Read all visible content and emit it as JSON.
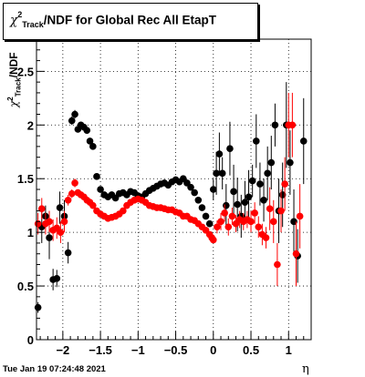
{
  "title": {
    "symbol": "χ",
    "superscript": "2",
    "subscript": "Track",
    "rest": "/NDF for Global Rec All EtapT"
  },
  "timestamp": "Tue Jan 19 07:24:48 2021",
  "xlabel": "η",
  "ylabel": {
    "symbol": "χ",
    "superscript": "2",
    "subscript": "Track",
    "rest": "/NDF"
  },
  "chart_data": {
    "type": "scatter",
    "title": "χ2Track/NDF for Global Rec All EtapT",
    "xlabel": "η",
    "ylabel": "χ2Track/NDF",
    "xlim": [
      -2.35,
      1.3
    ],
    "ylim": [
      0,
      2.8
    ],
    "xticks": [
      -2,
      -1.5,
      -1,
      -0.5,
      0,
      0.5,
      1
    ],
    "xtick_labels": [
      "−2",
      "−1.5",
      "−1",
      "−0.5",
      "0",
      "0.5",
      "1"
    ],
    "yticks": [
      0,
      0.5,
      1,
      1.5,
      2,
      2.5
    ],
    "ytick_labels": [
      "0",
      "0.5",
      "1",
      "1.5",
      "2",
      "2.5"
    ],
    "grid": true,
    "colors": {
      "black": "#000000",
      "red": "#ff0000"
    },
    "series": [
      {
        "color": "#000000",
        "points": [
          [
            -2.33,
            0.3,
            0.05
          ],
          [
            -2.28,
            1.05,
            0.15
          ],
          [
            -2.23,
            1.15,
            0.1
          ],
          [
            -2.18,
            0.95,
            0.2
          ],
          [
            -2.13,
            0.56,
            0.1
          ],
          [
            -2.08,
            0.57,
            0.08
          ],
          [
            -2.04,
            1.23,
            0.15
          ],
          [
            -1.98,
            1.15,
            0.15
          ],
          [
            -1.93,
            0.81,
            0.1
          ],
          [
            -1.88,
            2.04,
            0.04
          ],
          [
            -1.84,
            2.1,
            0.04
          ],
          [
            -1.8,
            1.96,
            0.03
          ],
          [
            -1.76,
            2.0,
            0.03
          ],
          [
            -1.72,
            1.98,
            0.03
          ],
          [
            -1.68,
            1.95,
            0.03
          ],
          [
            -1.64,
            1.85,
            0.03
          ],
          [
            -1.6,
            1.8,
            0.03
          ],
          [
            -1.55,
            1.52,
            0.03
          ],
          [
            -1.5,
            1.4,
            0.02
          ],
          [
            -1.45,
            1.35,
            0.02
          ],
          [
            -1.4,
            1.33,
            0.02
          ],
          [
            -1.35,
            1.35,
            0.02
          ],
          [
            -1.3,
            1.32,
            0.02
          ],
          [
            -1.25,
            1.36,
            0.02
          ],
          [
            -1.2,
            1.37,
            0.02
          ],
          [
            -1.15,
            1.35,
            0.02
          ],
          [
            -1.1,
            1.38,
            0.02
          ],
          [
            -1.05,
            1.37,
            0.02
          ],
          [
            -1.0,
            1.34,
            0.02
          ],
          [
            -0.95,
            1.33,
            0.02
          ],
          [
            -0.9,
            1.36,
            0.02
          ],
          [
            -0.85,
            1.39,
            0.02
          ],
          [
            -0.8,
            1.41,
            0.02
          ],
          [
            -0.75,
            1.43,
            0.02
          ],
          [
            -0.7,
            1.45,
            0.02
          ],
          [
            -0.65,
            1.46,
            0.02
          ],
          [
            -0.6,
            1.44,
            0.02
          ],
          [
            -0.55,
            1.47,
            0.02
          ],
          [
            -0.5,
            1.49,
            0.02
          ],
          [
            -0.45,
            1.47,
            0.02
          ],
          [
            -0.4,
            1.5,
            0.02
          ],
          [
            -0.35,
            1.46,
            0.02
          ],
          [
            -0.3,
            1.42,
            0.02
          ],
          [
            -0.25,
            1.37,
            0.02
          ],
          [
            -0.2,
            1.3,
            0.02
          ],
          [
            -0.15,
            1.23,
            0.02
          ],
          [
            -0.1,
            1.15,
            0.03
          ],
          [
            -0.05,
            1.08,
            0.03
          ],
          [
            0.0,
            1.4,
            0.1
          ],
          [
            0.04,
            1.55,
            0.2
          ],
          [
            0.08,
            1.73,
            0.2
          ],
          [
            0.12,
            1.55,
            0.15
          ],
          [
            0.17,
            1.25,
            0.2
          ],
          [
            0.22,
            1.78,
            0.25
          ],
          [
            0.27,
            1.38,
            0.25
          ],
          [
            0.32,
            1.26,
            0.25
          ],
          [
            0.37,
            1.15,
            0.2
          ],
          [
            0.42,
            1.28,
            0.2
          ],
          [
            0.47,
            1.33,
            0.25
          ],
          [
            0.52,
            1.48,
            0.15
          ],
          [
            0.57,
            1.85,
            0.25
          ],
          [
            0.62,
            1.45,
            0.2
          ],
          [
            0.67,
            1.3,
            0.2
          ],
          [
            0.72,
            1.55,
            0.25
          ],
          [
            0.77,
            1.65,
            0.25
          ],
          [
            0.82,
            2.0,
            0.2
          ],
          [
            0.87,
            1.2,
            0.3
          ],
          [
            0.92,
            1.35,
            0.3
          ],
          [
            0.97,
            2.0,
            0.4
          ],
          [
            1.02,
            1.65,
            0.3
          ],
          [
            1.07,
            1.1,
            0.3
          ],
          [
            1.12,
            0.78,
            0.25
          ],
          [
            1.2,
            1.85,
            0.4
          ]
        ]
      },
      {
        "color": "#ff0000",
        "points": [
          [
            -2.33,
            1.08,
            0.1
          ],
          [
            -2.28,
            1.22,
            0.1
          ],
          [
            -2.23,
            1.08,
            0.1
          ],
          [
            -2.18,
            1.1,
            0.1
          ],
          [
            -2.13,
            1.02,
            0.1
          ],
          [
            -2.08,
            1.04,
            0.1
          ],
          [
            -2.03,
            1.0,
            0.1
          ],
          [
            -1.98,
            1.1,
            0.1
          ],
          [
            -1.93,
            1.3,
            0.05
          ],
          [
            -1.88,
            1.36,
            0.04
          ],
          [
            -1.84,
            1.46,
            0.04
          ],
          [
            -1.8,
            1.37,
            0.03
          ],
          [
            -1.76,
            1.35,
            0.03
          ],
          [
            -1.72,
            1.33,
            0.03
          ],
          [
            -1.68,
            1.3,
            0.03
          ],
          [
            -1.64,
            1.28,
            0.02
          ],
          [
            -1.6,
            1.25,
            0.02
          ],
          [
            -1.55,
            1.2,
            0.02
          ],
          [
            -1.5,
            1.17,
            0.02
          ],
          [
            -1.45,
            1.15,
            0.02
          ],
          [
            -1.4,
            1.13,
            0.02
          ],
          [
            -1.35,
            1.14,
            0.02
          ],
          [
            -1.3,
            1.15,
            0.02
          ],
          [
            -1.25,
            1.17,
            0.02
          ],
          [
            -1.2,
            1.2,
            0.02
          ],
          [
            -1.15,
            1.25,
            0.02
          ],
          [
            -1.1,
            1.28,
            0.02
          ],
          [
            -1.05,
            1.3,
            0.02
          ],
          [
            -1.0,
            1.31,
            0.02
          ],
          [
            -0.95,
            1.3,
            0.02
          ],
          [
            -0.9,
            1.28,
            0.02
          ],
          [
            -0.85,
            1.25,
            0.02
          ],
          [
            -0.8,
            1.24,
            0.02
          ],
          [
            -0.75,
            1.23,
            0.02
          ],
          [
            -0.7,
            1.23,
            0.02
          ],
          [
            -0.65,
            1.22,
            0.02
          ],
          [
            -0.6,
            1.21,
            0.02
          ],
          [
            -0.55,
            1.21,
            0.02
          ],
          [
            -0.5,
            1.19,
            0.02
          ],
          [
            -0.45,
            1.18,
            0.02
          ],
          [
            -0.4,
            1.15,
            0.02
          ],
          [
            -0.35,
            1.15,
            0.02
          ],
          [
            -0.3,
            1.12,
            0.02
          ],
          [
            -0.25,
            1.11,
            0.02
          ],
          [
            -0.2,
            1.08,
            0.02
          ],
          [
            -0.15,
            1.05,
            0.02
          ],
          [
            -0.1,
            1.02,
            0.02
          ],
          [
            -0.05,
            0.98,
            0.02
          ],
          [
            -0.02,
            0.95,
            0.02
          ],
          [
            0.0,
            0.93,
            0.03
          ],
          [
            0.05,
            1.05,
            0.06
          ],
          [
            0.1,
            1.1,
            0.08
          ],
          [
            0.15,
            1.18,
            0.08
          ],
          [
            0.2,
            1.05,
            0.08
          ],
          [
            0.25,
            1.15,
            0.08
          ],
          [
            0.3,
            1.08,
            0.08
          ],
          [
            0.35,
            1.12,
            0.08
          ],
          [
            0.4,
            1.1,
            0.08
          ],
          [
            0.45,
            1.12,
            0.08
          ],
          [
            0.5,
            1.1,
            0.1
          ],
          [
            0.55,
            1.18,
            0.1
          ],
          [
            0.6,
            1.05,
            0.1
          ],
          [
            0.65,
            0.98,
            0.1
          ],
          [
            0.7,
            0.95,
            0.1
          ],
          [
            0.75,
            1.22,
            0.2
          ],
          [
            0.8,
            1.1,
            0.2
          ],
          [
            0.85,
            0.7,
            0.2
          ],
          [
            0.9,
            1.2,
            0.2
          ],
          [
            0.95,
            1.45,
            0.25
          ],
          [
            1.0,
            2.0,
            0.3
          ],
          [
            1.05,
            2.0,
            0.3
          ],
          [
            1.1,
            0.8,
            0.3
          ],
          [
            1.15,
            1.15,
            0.3
          ]
        ]
      }
    ]
  }
}
